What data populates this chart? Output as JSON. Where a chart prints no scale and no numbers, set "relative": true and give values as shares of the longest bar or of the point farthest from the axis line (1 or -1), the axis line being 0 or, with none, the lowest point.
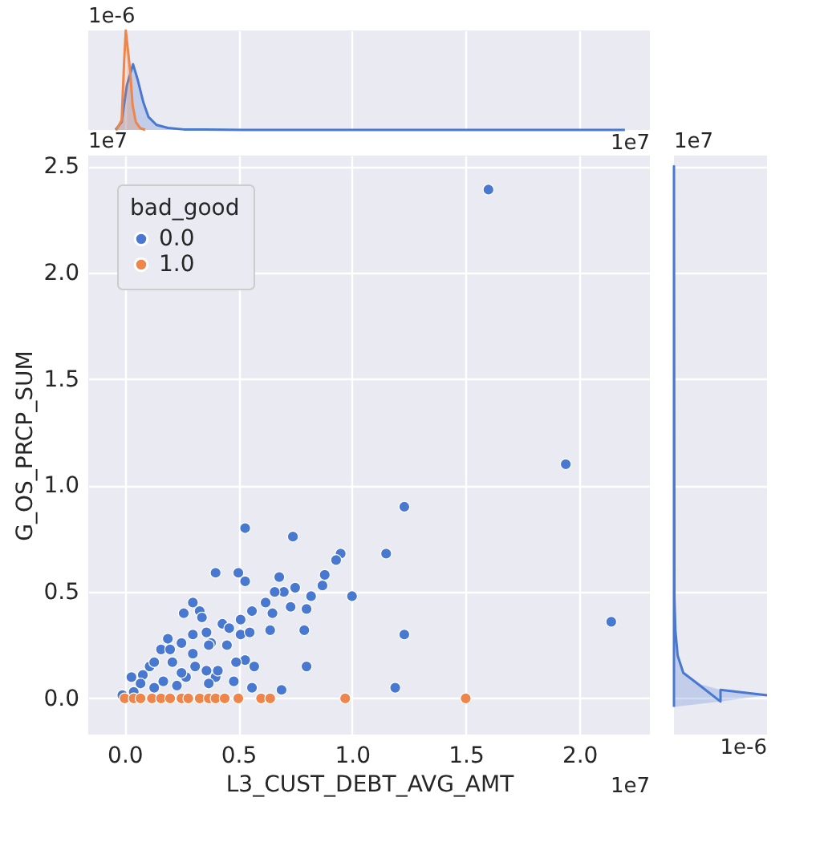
{
  "chart_data": [
    {
      "type": "area",
      "relative": true,
      "tick_labels": false,
      "grid": "x",
      "xlim": [
        -0.16,
        2.31
      ],
      "xticks": [
        0,
        0.5,
        1,
        1.5,
        2
      ],
      "annotations": [
        "1e-6",
        "1e7"
      ],
      "series": [
        {
          "color": "#4878d0",
          "x": [
            -0.04,
            -0.013,
            0.01,
            0.037,
            0.058,
            0.082,
            0.105,
            0.14,
            0.19,
            0.26,
            0.52,
            2.2
          ],
          "values": [
            0,
            0.08,
            0.45,
            0.66,
            0.5,
            0.28,
            0.13,
            0.05,
            0.02,
            0.005,
            0,
            0
          ]
        },
        {
          "color": "#ee854a",
          "x": [
            -0.036,
            -0.013,
            -0.002,
            0.005,
            0.024,
            0.035,
            0.049,
            0.068,
            0.09
          ],
          "values": [
            0,
            0.1,
            0.7,
            1,
            0.6,
            0.25,
            0.08,
            0.02,
            0
          ]
        }
      ]
    },
    {
      "type": "scatter",
      "xlabel": "L3_CUST_DEBT_AVG_AMT",
      "ylabel": "G_OS_PRCP_SUM",
      "legend_title": "bad_good",
      "legend": "top left",
      "grid": true,
      "marker": "circle",
      "xlim": [
        -0.16,
        2.31
      ],
      "ylim": [
        -0.17,
        2.55
      ],
      "xticks": [
        {
          "value": 0,
          "label": "0.0"
        },
        {
          "value": 0.5,
          "label": "0.5"
        },
        {
          "value": 1,
          "label": "1.0"
        },
        {
          "value": 1.5,
          "label": "1.5"
        },
        {
          "value": 2,
          "label": "2.0"
        }
      ],
      "yticks": [
        {
          "value": 0,
          "label": "0.0"
        },
        {
          "value": 0.5,
          "label": "0.5"
        },
        {
          "value": 1,
          "label": "1.0"
        },
        {
          "value": 1.5,
          "label": "1.5"
        },
        {
          "value": 2,
          "label": "2.0"
        },
        {
          "value": 2.5,
          "label": "2.5"
        }
      ],
      "annotations": [
        "1e7",
        "1e7"
      ],
      "series": [
        {
          "name": "0.0",
          "color": "#4878d0",
          "x": [
            1.6,
            1.94,
            1.23,
            0.53,
            0.74,
            0.95,
            0.93,
            1.15,
            0.4,
            0.5,
            0.53,
            0.68,
            0.88,
            0.87,
            0.75,
            0.7,
            0.66,
            0.82,
            1.0,
            0.3,
            0.33,
            0.26,
            0.34,
            0.56,
            0.62,
            0.73,
            0.8,
            0.65,
            0.51,
            0.43,
            0.46,
            0.51,
            0.55,
            0.64,
            0.79,
            1.23,
            2.14,
            0.36,
            0.3,
            0.19,
            0.25,
            0.38,
            0.45,
            0.16,
            0.2,
            0.3,
            0.53,
            0.57,
            0.49,
            0.36,
            0.8,
            0.11,
            0.17,
            0.27,
            0.4,
            0.08,
            0.03,
            0.04,
            1.19,
            0.69,
            0.56,
            0.48,
            0.37,
            0.23,
            0.13,
            -0.01,
            0.07,
            0.37,
            0.41,
            0.13,
            0.21,
            0.25,
            0.31
          ],
          "values": [
            2.39,
            1.1,
            0.9,
            0.8,
            0.76,
            0.68,
            0.65,
            0.68,
            0.59,
            0.59,
            0.55,
            0.57,
            0.58,
            0.53,
            0.52,
            0.5,
            0.5,
            0.48,
            0.48,
            0.45,
            0.41,
            0.4,
            0.38,
            0.41,
            0.45,
            0.43,
            0.42,
            0.4,
            0.37,
            0.35,
            0.33,
            0.3,
            0.31,
            0.32,
            0.32,
            0.3,
            0.36,
            0.31,
            0.3,
            0.28,
            0.26,
            0.26,
            0.25,
            0.23,
            0.23,
            0.21,
            0.18,
            0.15,
            0.17,
            0.13,
            0.15,
            0.15,
            0.08,
            0.1,
            0.1,
            0.11,
            0.1,
            0.03,
            0.05,
            0.04,
            0.05,
            0.08,
            0.07,
            0.06,
            0.05,
            0.015,
            0.07,
            0.25,
            0.13,
            0.17,
            0.17,
            0.12,
            0.15
          ]
        },
        {
          "name": "1.0",
          "color": "#ee854a",
          "x": [
            0.0,
            0.04,
            0.07,
            0.12,
            0.16,
            0.2,
            0.25,
            0.28,
            0.33,
            0.37,
            0.4,
            0.44,
            0.5,
            0.6,
            0.64,
            0.97,
            1.5
          ],
          "values": [
            0,
            0,
            0,
            0,
            0,
            0,
            0,
            0,
            0,
            0,
            0,
            0,
            0,
            0,
            0,
            0,
            0
          ]
        }
      ]
    },
    {
      "type": "area",
      "orientation": "horizontal",
      "relative": true,
      "tick_labels": false,
      "grid": "y",
      "ylim": [
        -0.17,
        2.55
      ],
      "yticks": [
        0,
        0.5,
        1,
        1.5,
        2,
        2.5
      ],
      "annotations": [
        "1e7",
        "1e-6"
      ],
      "series": [
        {
          "color": "#4878d0",
          "x": [
            -0.04,
            -0.015,
            0.015,
            0.04,
            0.07,
            0.12,
            0.2,
            0.32,
            0.47,
            2.5
          ],
          "values": [
            0,
            0.5,
            1,
            0.5,
            0.25,
            0.1,
            0.04,
            0.015,
            0.005,
            0
          ]
        }
      ]
    }
  ]
}
